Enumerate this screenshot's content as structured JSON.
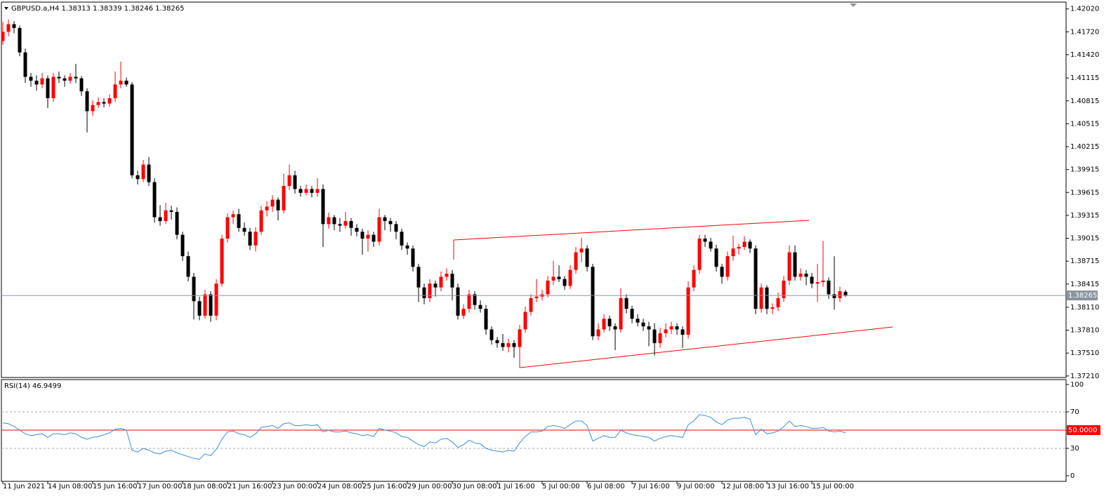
{
  "chart_data": {
    "type": "candlestick",
    "title": "GBPUSD.a,H4 1.38313 1.38339 1.38246 1.38265",
    "bull_color": "#ff0000",
    "bear_color": "#000000",
    "ylim": [
      1.3719,
      1.421
    ],
    "yticks": [
      {
        "value": 1.4202,
        "label": "1.42020"
      },
      {
        "value": 1.4172,
        "label": "1.41720"
      },
      {
        "value": 1.4142,
        "label": "1.41420"
      },
      1.41115,
      1.40815,
      1.40515,
      1.40215,
      1.39915,
      1.39615,
      1.39315,
      1.39015,
      1.38715,
      1.38415,
      {
        "value": 1.3811,
        "label": "1.38110"
      },
      {
        "value": 1.3781,
        "label": "1.37810"
      },
      {
        "value": 1.3751,
        "label": "1.37510"
      },
      {
        "value": 1.3721,
        "label": "1.37210"
      }
    ],
    "last_price": 1.38265,
    "x_labels": [
      "11 Jun 2021",
      "14 Jun 08:00",
      "15 Jun 16:00",
      "17 Jun 00:00",
      "18 Jun 08:00",
      "21 Jun 16:00",
      "23 Jun 00:00",
      "24 Jun 08:00",
      "25 Jun 16:00",
      "29 Jun 00:00",
      "30 Jun 08:00",
      "1 Jul 16:00",
      "5 Jul 00:00",
      "6 Jul 08:00",
      "7 Jul 16:00",
      "9 Jul 00:00",
      "12 Jul 08:00",
      "13 Jul 16:00",
      "15 Jul 00:00"
    ],
    "candles": [
      [
        1.416,
        1.4185,
        1.4155,
        1.4172
      ],
      [
        1.4172,
        1.4188,
        1.4166,
        1.4182
      ],
      [
        1.4182,
        1.4186,
        1.417,
        1.4177
      ],
      [
        1.4177,
        1.418,
        1.414,
        1.4145
      ],
      [
        1.4145,
        1.415,
        1.4105,
        1.4113
      ],
      [
        1.4113,
        1.4118,
        1.41,
        1.4108
      ],
      [
        1.4108,
        1.4115,
        1.4095,
        1.4103
      ],
      [
        1.4103,
        1.4118,
        1.4098,
        1.4111
      ],
      [
        1.4111,
        1.4115,
        1.4072,
        1.4085
      ],
      [
        1.4085,
        1.4118,
        1.408,
        1.4113
      ],
      [
        1.4113,
        1.412,
        1.4105,
        1.4111
      ],
      [
        1.4111,
        1.4115,
        1.41,
        1.4108
      ],
      [
        1.4108,
        1.4118,
        1.4104,
        1.4113
      ],
      [
        1.4113,
        1.413,
        1.4105,
        1.4111
      ],
      [
        1.4111,
        1.4114,
        1.4088,
        1.4094
      ],
      [
        1.4094,
        1.4098,
        1.404,
        1.4068
      ],
      [
        1.4068,
        1.4082,
        1.4062,
        1.4076
      ],
      [
        1.4076,
        1.4086,
        1.4072,
        1.408
      ],
      [
        1.408,
        1.4085,
        1.4073,
        1.4078
      ],
      [
        1.4078,
        1.409,
        1.4074,
        1.4085
      ],
      [
        1.4085,
        1.412,
        1.408,
        1.4103
      ],
      [
        1.4103,
        1.4133,
        1.4098,
        1.4108
      ],
      [
        1.4108,
        1.4112,
        1.41,
        1.4103
      ],
      [
        1.4103,
        1.4106,
        1.398,
        1.3984
      ],
      [
        1.3984,
        1.399,
        1.3972,
        1.3979
      ],
      [
        1.3979,
        1.4004,
        1.3975,
        1.3998
      ],
      [
        1.3998,
        1.4008,
        1.397,
        1.3975
      ],
      [
        1.3975,
        1.398,
        1.3922,
        1.3929
      ],
      [
        1.3929,
        1.3945,
        1.3918,
        1.3924
      ],
      [
        1.3924,
        1.3948,
        1.392,
        1.3938
      ],
      [
        1.3938,
        1.3944,
        1.3926,
        1.3936
      ],
      [
        1.3936,
        1.3942,
        1.39,
        1.3906
      ],
      [
        1.3906,
        1.391,
        1.3872,
        1.3878
      ],
      [
        1.3878,
        1.3884,
        1.3845,
        1.3851
      ],
      [
        1.3851,
        1.3856,
        1.3795,
        1.3819
      ],
      [
        1.3819,
        1.3825,
        1.3794,
        1.38
      ],
      [
        1.38,
        1.3834,
        1.3796,
        1.3828
      ],
      [
        1.3828,
        1.3832,
        1.3792,
        1.38
      ],
      [
        1.38,
        1.3848,
        1.3794,
        1.3842
      ],
      [
        1.3842,
        1.3906,
        1.3838,
        1.3901
      ],
      [
        1.3901,
        1.3934,
        1.3896,
        1.3929
      ],
      [
        1.3929,
        1.3938,
        1.392,
        1.3933
      ],
      [
        1.3933,
        1.394,
        1.391,
        1.3915
      ],
      [
        1.3915,
        1.3922,
        1.3905,
        1.391
      ],
      [
        1.391,
        1.3915,
        1.3886,
        1.3892
      ],
      [
        1.3892,
        1.3916,
        1.3884,
        1.391
      ],
      [
        1.391,
        1.3944,
        1.3906,
        1.3938
      ],
      [
        1.3938,
        1.395,
        1.393,
        1.3943
      ],
      [
        1.3943,
        1.3958,
        1.3936,
        1.3952
      ],
      [
        1.3952,
        1.3955,
        1.3925,
        1.3938
      ],
      [
        1.3938,
        1.3986,
        1.3934,
        1.397
      ],
      [
        1.397,
        1.3998,
        1.3965,
        1.3984
      ],
      [
        1.3984,
        1.399,
        1.396,
        1.3966
      ],
      [
        1.3966,
        1.397,
        1.3956,
        1.3961
      ],
      [
        1.3961,
        1.3972,
        1.3958,
        1.3966
      ],
      [
        1.3966,
        1.397,
        1.3955,
        1.3961
      ],
      [
        1.3961,
        1.398,
        1.3956,
        1.3966
      ],
      [
        1.3966,
        1.3972,
        1.389,
        1.392
      ],
      [
        1.392,
        1.3935,
        1.3914,
        1.3929
      ],
      [
        1.3929,
        1.3932,
        1.3912,
        1.392
      ],
      [
        1.392,
        1.3928,
        1.391,
        1.3918
      ],
      [
        1.3918,
        1.3936,
        1.3914,
        1.3924
      ],
      [
        1.3924,
        1.3928,
        1.3905,
        1.3915
      ],
      [
        1.3915,
        1.392,
        1.3904,
        1.391
      ],
      [
        1.391,
        1.3914,
        1.388,
        1.3901
      ],
      [
        1.3901,
        1.3912,
        1.3884,
        1.3906
      ],
      [
        1.3906,
        1.391,
        1.389,
        1.3897
      ],
      [
        1.3897,
        1.394,
        1.3892,
        1.3929
      ],
      [
        1.3929,
        1.3932,
        1.3912,
        1.3924
      ],
      [
        1.3924,
        1.3928,
        1.391,
        1.392
      ],
      [
        1.392,
        1.3924,
        1.39,
        1.391
      ],
      [
        1.391,
        1.3914,
        1.3886,
        1.3892
      ],
      [
        1.3892,
        1.3896,
        1.388,
        1.3888
      ],
      [
        1.3888,
        1.3892,
        1.3858,
        1.3864
      ],
      [
        1.3864,
        1.3868,
        1.3818,
        1.3837
      ],
      [
        1.3837,
        1.3842,
        1.3815,
        1.3823
      ],
      [
        1.3823,
        1.3848,
        1.3818,
        1.3842
      ],
      [
        1.3842,
        1.3846,
        1.3825,
        1.3837
      ],
      [
        1.3837,
        1.3858,
        1.3832,
        1.3851
      ],
      [
        1.3851,
        1.3862,
        1.3846,
        1.3855
      ],
      [
        1.3855,
        1.386,
        1.382,
        1.3837
      ],
      [
        1.3837,
        1.3842,
        1.3795,
        1.38
      ],
      [
        1.38,
        1.3815,
        1.3796,
        1.3809
      ],
      [
        1.3809,
        1.3834,
        1.3804,
        1.3828
      ],
      [
        1.3828,
        1.3832,
        1.3808,
        1.3814
      ],
      [
        1.3814,
        1.382,
        1.3804,
        1.3809
      ],
      [
        1.3809,
        1.3814,
        1.3775,
        1.3782
      ],
      [
        1.3782,
        1.3786,
        1.3762,
        1.3768
      ],
      [
        1.3768,
        1.3772,
        1.3758,
        1.3764
      ],
      [
        1.3764,
        1.3776,
        1.3754,
        1.3759
      ],
      [
        1.3759,
        1.377,
        1.3752,
        1.3764
      ],
      [
        1.3764,
        1.3768,
        1.3745,
        1.3759
      ],
      [
        1.3759,
        1.3788,
        1.3732,
        1.3782
      ],
      [
        1.3782,
        1.3812,
        1.3778,
        1.3805
      ],
      [
        1.3805,
        1.3828,
        1.38,
        1.3823
      ],
      [
        1.3823,
        1.3848,
        1.3818,
        1.3825
      ],
      [
        1.3825,
        1.3834,
        1.382,
        1.3828
      ],
      [
        1.3828,
        1.3852,
        1.3824,
        1.3846
      ],
      [
        1.3846,
        1.3872,
        1.384,
        1.3851
      ],
      [
        1.3851,
        1.3866,
        1.3844,
        1.3848
      ],
      [
        1.3848,
        1.3852,
        1.3834,
        1.3839
      ],
      [
        1.3839,
        1.3866,
        1.3835,
        1.386
      ],
      [
        1.386,
        1.389,
        1.3855,
        1.3883
      ],
      [
        1.3883,
        1.3902,
        1.387,
        1.3888
      ],
      [
        1.3888,
        1.3892,
        1.3858,
        1.3864
      ],
      [
        1.3864,
        1.3868,
        1.3768,
        1.3773
      ],
      [
        1.3773,
        1.379,
        1.3768,
        1.3782
      ],
      [
        1.3782,
        1.3802,
        1.3778,
        1.3796
      ],
      [
        1.3796,
        1.38,
        1.378,
        1.3786
      ],
      [
        1.3786,
        1.379,
        1.3755,
        1.3782
      ],
      [
        1.3782,
        1.3836,
        1.3778,
        1.3823
      ],
      [
        1.3823,
        1.3828,
        1.3803,
        1.3809
      ],
      [
        1.3809,
        1.3813,
        1.379,
        1.3796
      ],
      [
        1.3796,
        1.3802,
        1.3786,
        1.3791
      ],
      [
        1.3791,
        1.3796,
        1.378,
        1.3786
      ],
      [
        1.3786,
        1.3792,
        1.376,
        1.3782
      ],
      [
        1.3782,
        1.379,
        1.3748,
        1.3764
      ],
      [
        1.3764,
        1.3784,
        1.3758,
        1.3777
      ],
      [
        1.3777,
        1.379,
        1.3772,
        1.3782
      ],
      [
        1.3782,
        1.3792,
        1.3776,
        1.3786
      ],
      [
        1.3786,
        1.379,
        1.3775,
        1.3782
      ],
      [
        1.3782,
        1.3786,
        1.3758,
        1.3775
      ],
      [
        1.3775,
        1.3845,
        1.377,
        1.3837
      ],
      [
        1.3837,
        1.3866,
        1.3832,
        1.386
      ],
      [
        1.386,
        1.3906,
        1.3855,
        1.3901
      ],
      [
        1.3901,
        1.3906,
        1.389,
        1.3897
      ],
      [
        1.3897,
        1.3902,
        1.3884,
        1.3888
      ],
      [
        1.3888,
        1.3893,
        1.3858,
        1.3864
      ],
      [
        1.3864,
        1.3868,
        1.3842,
        1.3851
      ],
      [
        1.3851,
        1.3884,
        1.3846,
        1.3878
      ],
      [
        1.3878,
        1.3905,
        1.3872,
        1.3888
      ],
      [
        1.3888,
        1.3894,
        1.388,
        1.389
      ],
      [
        1.389,
        1.3904,
        1.3886,
        1.3897
      ],
      [
        1.3897,
        1.39,
        1.3882,
        1.3888
      ],
      [
        1.3888,
        1.3892,
        1.3802,
        1.3809
      ],
      [
        1.3809,
        1.3842,
        1.3804,
        1.3837
      ],
      [
        1.3837,
        1.384,
        1.3802,
        1.3809
      ],
      [
        1.3809,
        1.3816,
        1.3802,
        1.3811
      ],
      [
        1.3811,
        1.383,
        1.3806,
        1.3823
      ],
      [
        1.3823,
        1.3852,
        1.3818,
        1.3846
      ],
      [
        1.3846,
        1.3892,
        1.384,
        1.3883
      ],
      [
        1.3883,
        1.3892,
        1.3846,
        1.3851
      ],
      [
        1.3851,
        1.3862,
        1.3846,
        1.3855
      ],
      [
        1.3855,
        1.386,
        1.384,
        1.3851
      ],
      [
        1.3851,
        1.3856,
        1.3836,
        1.3842
      ],
      [
        1.3842,
        1.3868,
        1.3818,
        1.3844
      ],
      [
        1.3844,
        1.3898,
        1.3838,
        1.3846
      ],
      [
        1.3846,
        1.385,
        1.3822,
        1.3828
      ],
      [
        1.3828,
        1.3878,
        1.3808,
        1.3823
      ],
      [
        1.3823,
        1.3838,
        1.3818,
        1.3832
      ],
      [
        1.38313,
        1.38339,
        1.38246,
        1.38265
      ]
    ],
    "rsi": {
      "label": "RSI(14) 46.9499",
      "color": "#3a8ee6",
      "ylim": [
        0,
        100
      ],
      "yticks": [
        100,
        70,
        30,
        0
      ],
      "dashed_levels": [
        70,
        30
      ],
      "level": {
        "value": 50,
        "label": "50.0000"
      },
      "level_color": "#ff0000",
      "values": [
        58,
        57,
        54,
        50,
        46,
        44,
        45,
        46,
        42,
        46,
        46,
        45,
        47,
        46,
        42,
        40,
        42,
        43,
        45,
        47,
        51,
        52,
        50,
        28,
        26,
        30,
        28,
        25,
        24,
        27,
        28,
        25,
        23,
        21,
        19,
        18,
        24,
        22,
        29,
        40,
        48,
        49,
        46,
        45,
        42,
        46,
        53,
        54,
        55,
        52,
        57,
        58,
        55,
        55,
        56,
        55,
        56,
        48,
        50,
        48,
        48,
        49,
        47,
        46,
        44,
        45,
        43,
        52,
        50,
        49,
        47,
        43,
        42,
        38,
        34,
        32,
        37,
        36,
        40,
        41,
        37,
        31,
        34,
        39,
        36,
        35,
        30,
        28,
        27,
        26,
        28,
        27,
        36,
        43,
        48,
        48,
        49,
        54,
        55,
        54,
        52,
        56,
        60,
        60,
        55,
        38,
        41,
        44,
        42,
        42,
        50,
        47,
        45,
        44,
        43,
        42,
        38,
        41,
        43,
        44,
        43,
        42,
        56,
        60,
        67,
        66,
        64,
        59,
        56,
        61,
        63,
        63,
        64,
        62,
        45,
        51,
        46,
        47,
        49,
        54,
        60,
        54,
        55,
        54,
        52,
        52,
        53,
        49,
        48,
        49,
        46.9499
      ]
    }
  }
}
